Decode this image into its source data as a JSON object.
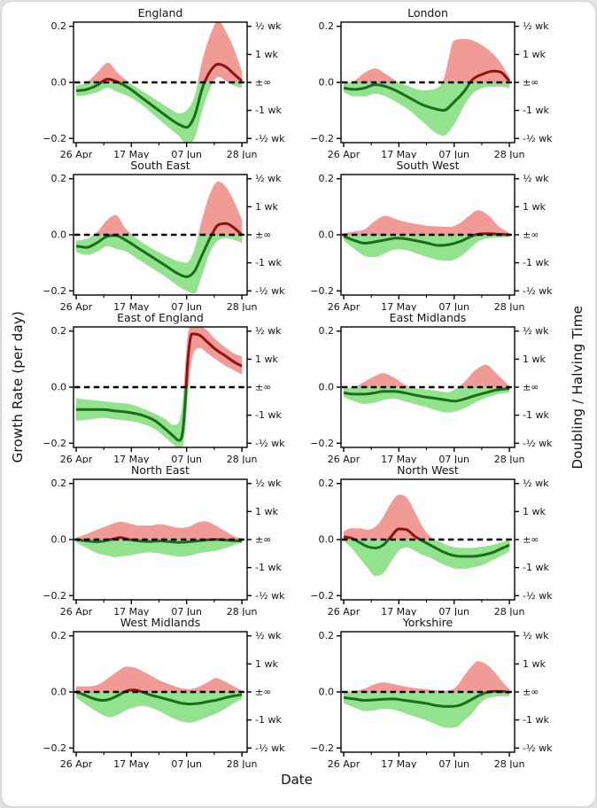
{
  "figure": {
    "xlabel": "Date",
    "ylabel_left": "Growth Rate (per day)",
    "ylabel_right": "Doubling / Halving Time"
  },
  "chart_data": {
    "type": "line",
    "layout": {
      "rows": 5,
      "cols": 2,
      "grid": false,
      "legend": "none"
    },
    "xlabel": "Date",
    "ylabel_left": "Growth Rate (per day)",
    "ylabel_right": "Doubling / Halving Time",
    "x_unit": "days (0 = 25 Apr 2020)",
    "xlim": [
      0,
      66
    ],
    "ylim": [
      -0.215,
      0.215
    ],
    "xticks": {
      "days": [
        1,
        22,
        43,
        64
      ],
      "labels": [
        "26 Apr",
        "17 May",
        "07 Jun",
        "28 Jun"
      ]
    },
    "xminor_days": [
      11.5,
      32.5,
      53.5
    ],
    "yticks_left": {
      "values": [
        0.2,
        0.0,
        -0.2
      ],
      "labels": [
        "0.2",
        "0.0",
        "−0.2"
      ]
    },
    "yticks_right": {
      "values": [
        0.2,
        0.1,
        0.0,
        -0.1,
        -0.2
      ],
      "labels": [
        "½ wk",
        "1 wk",
        "±∞",
        "-1 wk",
        "-½ wk"
      ]
    },
    "zero_line": "dashed black at growth rate 0",
    "colors": {
      "band_positive": "#f09b96",
      "band_negative": "#92e28e",
      "line_positive": "#8e1312",
      "line_negative": "#1a6e18",
      "zero_dash": "#000000",
      "axis": "#000000"
    },
    "panels": [
      {
        "title": "England",
        "x": [
          1,
          5,
          9,
          13,
          17,
          21,
          26,
          31,
          36,
          40,
          43,
          46,
          49,
          52,
          55,
          58,
          61,
          64
        ],
        "mean": [
          -0.03,
          -0.025,
          -0.01,
          0.012,
          0.0,
          -0.02,
          -0.055,
          -0.09,
          -0.125,
          -0.15,
          -0.16,
          -0.12,
          -0.02,
          0.04,
          0.065,
          0.055,
          0.03,
          0.005
        ],
        "upper": [
          -0.012,
          0.0,
          0.035,
          0.07,
          0.032,
          0.0,
          -0.03,
          -0.06,
          -0.09,
          -0.11,
          -0.1,
          -0.05,
          0.08,
          0.17,
          0.22,
          0.18,
          0.12,
          0.04
        ],
        "lower": [
          -0.05,
          -0.045,
          -0.035,
          -0.02,
          -0.035,
          -0.05,
          -0.08,
          -0.12,
          -0.16,
          -0.19,
          -0.22,
          -0.2,
          -0.1,
          -0.02,
          0.02,
          0.005,
          -0.012,
          -0.02
        ]
      },
      {
        "title": "London",
        "x": [
          1,
          5,
          9,
          13,
          17,
          21,
          26,
          31,
          36,
          39,
          43,
          47,
          50,
          54,
          58,
          61,
          64
        ],
        "mean": [
          -0.02,
          -0.025,
          -0.02,
          -0.008,
          -0.015,
          -0.03,
          -0.055,
          -0.08,
          -0.095,
          -0.1,
          -0.07,
          -0.03,
          0.01,
          0.03,
          0.04,
          0.035,
          0.005
        ],
        "upper": [
          -0.005,
          0.005,
          0.035,
          0.05,
          0.03,
          0.005,
          -0.015,
          -0.028,
          -0.022,
          0.01,
          0.15,
          0.155,
          0.15,
          0.13,
          0.1,
          0.065,
          0.02
        ],
        "lower": [
          -0.035,
          -0.05,
          -0.05,
          -0.04,
          -0.05,
          -0.07,
          -0.1,
          -0.14,
          -0.18,
          -0.19,
          -0.15,
          -0.08,
          -0.04,
          -0.02,
          -0.015,
          -0.015,
          -0.02
        ]
      },
      {
        "title": "South East",
        "x": [
          1,
          5,
          9,
          13,
          16,
          20,
          25,
          30,
          35,
          40,
          43,
          46,
          49,
          52,
          55,
          58,
          61,
          64
        ],
        "mean": [
          -0.04,
          -0.045,
          -0.028,
          -0.005,
          -0.003,
          -0.02,
          -0.05,
          -0.08,
          -0.11,
          -0.14,
          -0.15,
          -0.13,
          -0.07,
          -0.01,
          0.035,
          0.04,
          0.025,
          0.0
        ],
        "upper": [
          -0.02,
          -0.015,
          0.01,
          0.055,
          0.07,
          0.02,
          -0.02,
          -0.05,
          -0.075,
          -0.095,
          -0.1,
          -0.05,
          0.06,
          0.15,
          0.19,
          0.17,
          0.12,
          0.055
        ],
        "lower": [
          -0.062,
          -0.072,
          -0.06,
          -0.04,
          -0.05,
          -0.06,
          -0.09,
          -0.12,
          -0.15,
          -0.185,
          -0.2,
          -0.21,
          -0.14,
          -0.06,
          -0.02,
          -0.012,
          -0.018,
          -0.03
        ]
      },
      {
        "title": "South West",
        "x": [
          1,
          5,
          9,
          13,
          17,
          21,
          25,
          29,
          33,
          37,
          41,
          45,
          49,
          52,
          56,
          60,
          64
        ],
        "mean": [
          -0.005,
          -0.02,
          -0.03,
          -0.025,
          -0.018,
          -0.012,
          -0.015,
          -0.022,
          -0.03,
          -0.038,
          -0.035,
          -0.025,
          -0.008,
          0.002,
          0.004,
          0.002,
          0.0
        ],
        "upper": [
          0.006,
          0.012,
          0.02,
          0.05,
          0.068,
          0.055,
          0.045,
          0.038,
          0.032,
          0.03,
          0.028,
          0.04,
          0.07,
          0.088,
          0.07,
          0.03,
          0.006
        ],
        "lower": [
          -0.02,
          -0.05,
          -0.075,
          -0.08,
          -0.065,
          -0.052,
          -0.055,
          -0.068,
          -0.08,
          -0.09,
          -0.093,
          -0.08,
          -0.05,
          -0.025,
          -0.012,
          -0.01,
          -0.008
        ]
      },
      {
        "title": "East of England",
        "x": [
          1,
          6,
          11,
          16,
          21,
          26,
          31,
          35,
          38,
          40,
          41.5,
          42.5,
          43.5,
          45,
          48,
          51,
          54,
          58,
          61,
          64
        ],
        "mean": [
          -0.08,
          -0.08,
          -0.08,
          -0.085,
          -0.09,
          -0.1,
          -0.12,
          -0.15,
          -0.175,
          -0.19,
          -0.16,
          -0.05,
          0.1,
          0.19,
          0.185,
          0.16,
          0.135,
          0.11,
          0.09,
          0.075
        ],
        "upper": [
          -0.04,
          -0.045,
          -0.05,
          -0.055,
          -0.06,
          -0.075,
          -0.095,
          -0.115,
          -0.135,
          -0.125,
          -0.05,
          0.08,
          0.19,
          0.22,
          0.22,
          0.2,
          0.17,
          0.14,
          0.12,
          0.11
        ],
        "lower": [
          -0.12,
          -0.115,
          -0.11,
          -0.115,
          -0.12,
          -0.13,
          -0.15,
          -0.18,
          -0.205,
          -0.22,
          -0.21,
          -0.15,
          -0.02,
          0.1,
          0.14,
          0.12,
          0.1,
          0.075,
          0.06,
          0.045
        ]
      },
      {
        "title": "East Midlands",
        "x": [
          1,
          5,
          9,
          13,
          16,
          20,
          24,
          28,
          32,
          36,
          40,
          43,
          47,
          51,
          55,
          59,
          64
        ],
        "mean": [
          -0.02,
          -0.025,
          -0.025,
          -0.02,
          -0.015,
          -0.015,
          -0.02,
          -0.028,
          -0.035,
          -0.04,
          -0.046,
          -0.05,
          -0.042,
          -0.03,
          -0.02,
          -0.01,
          -0.005
        ],
        "upper": [
          -0.005,
          0.0,
          0.02,
          0.04,
          0.05,
          0.035,
          0.01,
          -0.003,
          -0.008,
          -0.012,
          -0.018,
          -0.01,
          0.02,
          0.06,
          0.08,
          0.05,
          0.004
        ],
        "lower": [
          -0.035,
          -0.05,
          -0.06,
          -0.055,
          -0.046,
          -0.04,
          -0.05,
          -0.06,
          -0.07,
          -0.082,
          -0.09,
          -0.088,
          -0.075,
          -0.055,
          -0.038,
          -0.026,
          -0.018
        ]
      },
      {
        "title": "North East",
        "x": [
          1,
          5,
          9,
          13,
          16,
          18,
          21,
          25,
          29,
          33,
          36,
          40,
          44,
          47,
          50,
          54,
          58,
          61,
          64
        ],
        "mean": [
          0.0,
          -0.005,
          -0.008,
          -0.003,
          0.004,
          0.007,
          0.0,
          -0.005,
          -0.007,
          -0.005,
          -0.007,
          -0.01,
          -0.008,
          -0.005,
          -0.002,
          0.0,
          -0.002,
          -0.004,
          -0.005
        ],
        "upper": [
          0.006,
          0.02,
          0.035,
          0.05,
          0.06,
          0.064,
          0.058,
          0.05,
          0.05,
          0.055,
          0.05,
          0.042,
          0.046,
          0.06,
          0.065,
          0.05,
          0.028,
          0.012,
          0.004
        ],
        "lower": [
          -0.01,
          -0.03,
          -0.048,
          -0.058,
          -0.063,
          -0.06,
          -0.057,
          -0.05,
          -0.046,
          -0.05,
          -0.055,
          -0.06,
          -0.058,
          -0.05,
          -0.045,
          -0.04,
          -0.03,
          -0.02,
          -0.012
        ]
      },
      {
        "title": "North West",
        "x": [
          1,
          4,
          7,
          10,
          13,
          16,
          19,
          22,
          25,
          28,
          31,
          34,
          38,
          42,
          46,
          50,
          54,
          58,
          61,
          64
        ],
        "mean": [
          0.01,
          0.005,
          -0.01,
          -0.025,
          -0.03,
          -0.02,
          0.01,
          0.038,
          0.035,
          0.012,
          -0.005,
          -0.02,
          -0.04,
          -0.055,
          -0.06,
          -0.06,
          -0.055,
          -0.045,
          -0.032,
          -0.02
        ],
        "upper": [
          0.03,
          0.04,
          0.04,
          0.035,
          0.045,
          0.08,
          0.13,
          0.16,
          0.15,
          0.1,
          0.045,
          0.01,
          -0.01,
          -0.025,
          -0.03,
          -0.03,
          -0.025,
          -0.018,
          -0.01,
          0.0
        ],
        "lower": [
          -0.005,
          -0.03,
          -0.065,
          -0.1,
          -0.13,
          -0.12,
          -0.08,
          -0.04,
          -0.028,
          -0.04,
          -0.055,
          -0.065,
          -0.085,
          -0.1,
          -0.105,
          -0.1,
          -0.09,
          -0.072,
          -0.058,
          -0.042
        ]
      },
      {
        "title": "West Midlands",
        "x": [
          1,
          4,
          8,
          11,
          14,
          17,
          20,
          23,
          26,
          29,
          33,
          37,
          41,
          44,
          48,
          52,
          54,
          58,
          61,
          64
        ],
        "mean": [
          0.0,
          -0.01,
          -0.025,
          -0.03,
          -0.025,
          -0.012,
          0.003,
          0.007,
          0.0,
          -0.01,
          -0.02,
          -0.03,
          -0.04,
          -0.043,
          -0.04,
          -0.033,
          -0.03,
          -0.02,
          -0.014,
          -0.01
        ],
        "upper": [
          0.02,
          0.02,
          0.022,
          0.035,
          0.055,
          0.075,
          0.09,
          0.088,
          0.075,
          0.06,
          0.04,
          0.025,
          0.013,
          0.01,
          0.02,
          0.04,
          0.05,
          0.035,
          0.02,
          0.005
        ],
        "lower": [
          -0.02,
          -0.04,
          -0.065,
          -0.082,
          -0.09,
          -0.08,
          -0.065,
          -0.055,
          -0.05,
          -0.055,
          -0.07,
          -0.09,
          -0.105,
          -0.11,
          -0.1,
          -0.085,
          -0.078,
          -0.058,
          -0.04,
          -0.025
        ]
      },
      {
        "title": "Yorkshire",
        "x": [
          1,
          5,
          9,
          13,
          16,
          20,
          24,
          28,
          32,
          36,
          40,
          44,
          47,
          50,
          52,
          55,
          58,
          61,
          64
        ],
        "mean": [
          -0.02,
          -0.025,
          -0.03,
          -0.028,
          -0.026,
          -0.025,
          -0.03,
          -0.035,
          -0.04,
          -0.048,
          -0.052,
          -0.05,
          -0.04,
          -0.025,
          -0.015,
          -0.003,
          0.002,
          0.002,
          -0.002
        ],
        "upper": [
          0.0,
          0.003,
          0.012,
          0.028,
          0.034,
          0.028,
          0.02,
          0.014,
          0.01,
          0.006,
          0.005,
          0.02,
          0.06,
          0.095,
          0.11,
          0.1,
          0.075,
          0.04,
          0.01
        ],
        "lower": [
          -0.04,
          -0.055,
          -0.068,
          -0.065,
          -0.06,
          -0.063,
          -0.075,
          -0.088,
          -0.1,
          -0.115,
          -0.128,
          -0.125,
          -0.1,
          -0.075,
          -0.05,
          -0.025,
          -0.018,
          -0.015,
          -0.015
        ]
      }
    ]
  }
}
